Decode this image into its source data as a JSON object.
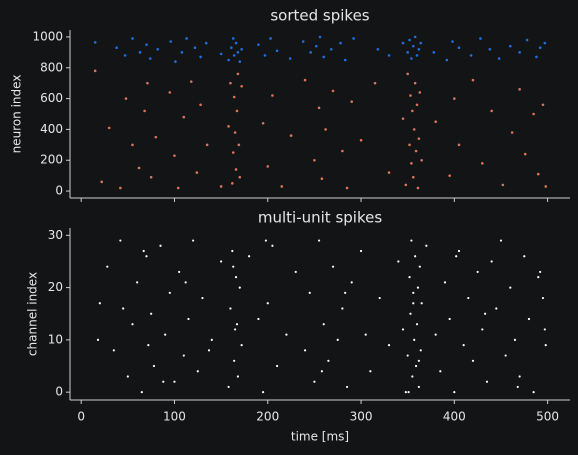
{
  "chart_data": [
    {
      "type": "scatter",
      "title": "sorted spikes",
      "ylabel": "neuron index",
      "xlim": [
        -12,
        524
      ],
      "ylim": [
        -45,
        1045
      ],
      "xticks": [
        0,
        100,
        200,
        300,
        400,
        500
      ],
      "yticks": [
        0,
        200,
        400,
        600,
        800,
        1000
      ],
      "show_xtick_labels": false,
      "series": [
        {
          "color": "#1f6fe0",
          "x": [
            15,
            38,
            47,
            55,
            63,
            70,
            74,
            82,
            96,
            101,
            108,
            113,
            122,
            128,
            134,
            150,
            158,
            161,
            163,
            164,
            166,
            168,
            170,
            172,
            190,
            197,
            203,
            210,
            224,
            238,
            246,
            252,
            256,
            260,
            268,
            278,
            283,
            292,
            318,
            330,
            345,
            350,
            352,
            354,
            356,
            358,
            360,
            362,
            364,
            378,
            392,
            398,
            405,
            418,
            428,
            438,
            448,
            460,
            470,
            478,
            488,
            492,
            497
          ],
          "values": [
            965,
            930,
            880,
            990,
            900,
            950,
            860,
            920,
            970,
            840,
            900,
            990,
            930,
            870,
            960,
            890,
            850,
            930,
            990,
            880,
            960,
            900,
            840,
            920,
            950,
            880,
            990,
            910,
            860,
            970,
            900,
            940,
            1000,
            870,
            920,
            960,
            850,
            990,
            920,
            880,
            960,
            900,
            980,
            860,
            940,
            1000,
            880,
            920,
            960,
            900,
            850,
            970,
            930,
            880,
            990,
            920,
            860,
            940,
            900,
            980,
            870,
            930,
            960
          ]
        },
        {
          "color": "#d9755a",
          "x": [
            15,
            22,
            30,
            42,
            48,
            55,
            62,
            68,
            71,
            75,
            80,
            95,
            100,
            104,
            110,
            118,
            124,
            128,
            135,
            150,
            158,
            160,
            162,
            163,
            164,
            165,
            166,
            167,
            168,
            169,
            170,
            172,
            195,
            200,
            205,
            215,
            225,
            240,
            250,
            255,
            258,
            262,
            270,
            280,
            285,
            290,
            300,
            315,
            330,
            345,
            348,
            350,
            352,
            353,
            354,
            355,
            356,
            357,
            358,
            359,
            360,
            361,
            362,
            363,
            365,
            380,
            395,
            400,
            405,
            420,
            430,
            440,
            452,
            462,
            470,
            476,
            485,
            490,
            495,
            498
          ],
          "values": [
            780,
            60,
            410,
            20,
            600,
            300,
            150,
            520,
            700,
            90,
            350,
            640,
            230,
            20,
            480,
            710,
            120,
            560,
            300,
            30,
            420,
            700,
            50,
            250,
            610,
            380,
            140,
            520,
            760,
            300,
            90,
            680,
            440,
            160,
            620,
            30,
            360,
            720,
            200,
            540,
            80,
            400,
            650,
            260,
            20,
            580,
            330,
            700,
            120,
            470,
            40,
            760,
            300,
            620,
            180,
            520,
            90,
            400,
            700,
            260,
            560,
            20,
            340,
            640,
            200,
            450,
            100,
            600,
            300,
            720,
            180,
            520,
            40,
            380,
            660,
            240,
            500,
            110,
            560,
            30
          ]
        }
      ]
    },
    {
      "type": "scatter",
      "title": "multi-unit spikes",
      "ylabel": "channel index",
      "xlabel": "time [ms]",
      "xlim": [
        -12,
        524
      ],
      "ylim": [
        -1.5,
        31.4
      ],
      "xticks": [
        0,
        100,
        200,
        300,
        400,
        500
      ],
      "yticks": [
        0,
        10,
        20,
        30
      ],
      "show_xtick_labels": true,
      "series": [
        {
          "color": "#ffffff",
          "x": [
            20,
            28,
            35,
            42,
            50,
            55,
            60,
            65,
            70,
            72,
            75,
            78,
            85,
            90,
            95,
            100,
            105,
            110,
            115,
            120,
            125,
            130,
            140,
            150,
            158,
            160,
            162,
            164,
            165,
            166,
            168,
            170,
            172,
            180,
            190,
            195,
            200,
            205,
            210,
            220,
            230,
            240,
            245,
            250,
            255,
            260,
            265,
            270,
            275,
            280,
            285,
            290,
            300,
            310,
            320,
            330,
            340,
            345,
            348,
            350,
            352,
            353,
            354,
            355,
            356,
            357,
            358,
            359,
            360,
            361,
            362,
            363,
            364,
            365,
            370,
            380,
            385,
            390,
            395,
            400,
            405,
            410,
            415,
            420,
            425,
            430,
            435,
            440,
            445,
            450,
            455,
            460,
            465,
            470,
            475,
            480,
            485,
            490,
            495,
            498,
            18,
            45,
            67,
            88,
            112,
            137,
            163,
            167,
            198,
            258,
            283,
            305,
            351,
            356,
            362,
            402,
            433,
            468,
            492,
            497
          ],
          "values": [
            17,
            24,
            8,
            29,
            3,
            13,
            21,
            0,
            26,
            9,
            15,
            5,
            28,
            11,
            19,
            2,
            23,
            7,
            14,
            29,
            4,
            18,
            10,
            25,
            1,
            16,
            27,
            6,
            12,
            22,
            3,
            20,
            9,
            26,
            14,
            0,
            17,
            28,
            5,
            11,
            23,
            8,
            19,
            2,
            29,
            13,
            6,
            24,
            10,
            16,
            1,
            21,
            27,
            4,
            18,
            9,
            25,
            12,
            0,
            7,
            22,
            15,
            29,
            3,
            19,
            10,
            26,
            5,
            13,
            20,
            1,
            24,
            8,
            17,
            28,
            11,
            4,
            21,
            14,
            0,
            27,
            9,
            18,
            6,
            23,
            12,
            2,
            25,
            16,
            29,
            7,
            20,
            10,
            3,
            26,
            14,
            0,
            22,
            18,
            9,
            10,
            16,
            27,
            2,
            21,
            8,
            24,
            13,
            29,
            4,
            19,
            11,
            0,
            17,
            6,
            26,
            15,
            1,
            23,
            12
          ]
        }
      ]
    }
  ]
}
